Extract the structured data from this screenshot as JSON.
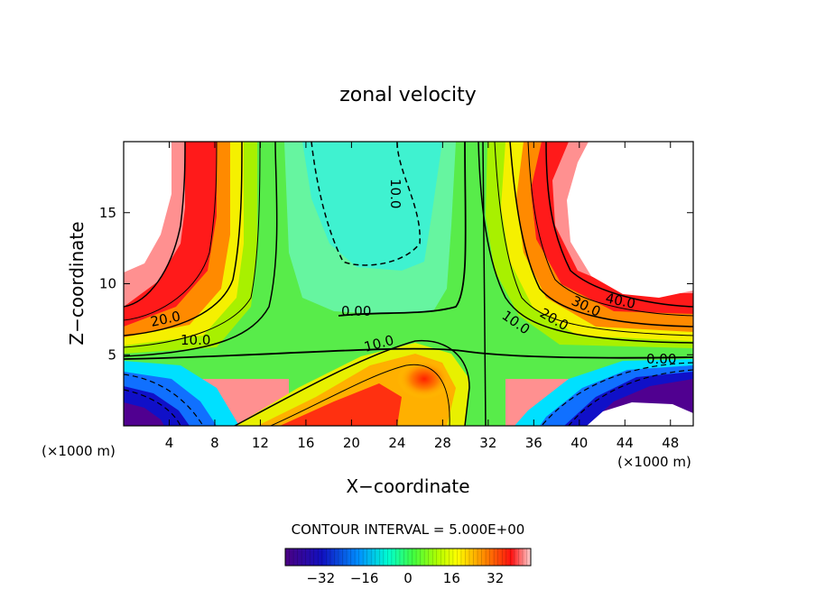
{
  "chart_data": {
    "type": "heatmap",
    "title": "zonal velocity",
    "xlabel": "X−coordinate",
    "ylabel": "Z−coordinate",
    "x_unit": "(×1000 m)",
    "xlim": [
      0,
      50
    ],
    "ylim": [
      0,
      20
    ],
    "x_ticks": [
      "4",
      "8",
      "12",
      "16",
      "20",
      "24",
      "28",
      "32",
      "36",
      "40",
      "44",
      "48"
    ],
    "y_ticks": [
      "5",
      "10",
      "15"
    ],
    "contour_interval_text": "CONTOUR INTERVAL = 5.000E+00",
    "contour_labels": [
      "20.0",
      "10.0",
      "0.00",
      "10.0",
      "10.0",
      "10.0",
      "20.0",
      "30.0",
      "40.0",
      "0.00",
      "10.0"
    ],
    "colorbar": {
      "range": [
        -45,
        45
      ],
      "ticks": [
        "−32",
        "−16",
        "0",
        "16",
        "32"
      ],
      "tick_values": [
        -32,
        -16,
        0,
        16,
        32
      ]
    },
    "masked_regions": [
      "upper-left corner",
      "upper-right area",
      "lower-right area"
    ],
    "colormap": [
      "#4b0082",
      "#0000ff",
      "#00ffff",
      "#00ff00",
      "#ffff00",
      "#ff0000",
      "#ffd0d0"
    ]
  }
}
